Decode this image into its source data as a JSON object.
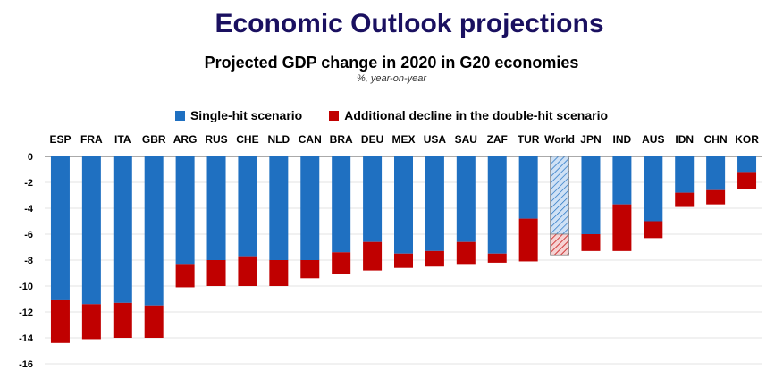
{
  "header": {
    "title": "Economic Outlook projections"
  },
  "chart_data": {
    "type": "bar",
    "stacked": true,
    "title": "Projected GDP change in 2020 in G20 economies",
    "subtitle": "%, year-on-year",
    "xlabel": "",
    "ylabel": "",
    "ylim": [
      -16,
      0
    ],
    "yticks": [
      0,
      -2,
      -4,
      -6,
      -8,
      -10,
      -12,
      -14,
      -16
    ],
    "grid": true,
    "legend_position": "top",
    "categories": [
      "ESP",
      "FRA",
      "ITA",
      "GBR",
      "ARG",
      "RUS",
      "CHE",
      "NLD",
      "CAN",
      "BRA",
      "DEU",
      "MEX",
      "USA",
      "SAU",
      "ZAF",
      "TUR",
      "World",
      "JPN",
      "IND",
      "AUS",
      "IDN",
      "CHN",
      "KOR"
    ],
    "highlight_category": "World",
    "series": [
      {
        "name": "Single-hit scenario",
        "color": "#1f70c1",
        "values": [
          -11.1,
          -11.4,
          -11.3,
          -11.5,
          -8.3,
          -8.0,
          -7.7,
          -8.0,
          -8.0,
          -7.4,
          -6.6,
          -7.5,
          -7.3,
          -6.6,
          -7.5,
          -4.8,
          -6.0,
          -6.0,
          -3.7,
          -5.0,
          -2.8,
          -2.6,
          -1.2
        ]
      },
      {
        "name": "Additional decline in the double-hit scenario",
        "color": "#c00000",
        "values": [
          -3.3,
          -2.7,
          -2.7,
          -2.5,
          -1.8,
          -2.0,
          -2.3,
          -2.0,
          -1.4,
          -1.7,
          -2.2,
          -1.1,
          -1.2,
          -1.7,
          -0.7,
          -3.3,
          -1.6,
          -1.3,
          -3.6,
          -1.3,
          -1.1,
          -1.1,
          -1.3
        ]
      }
    ]
  }
}
